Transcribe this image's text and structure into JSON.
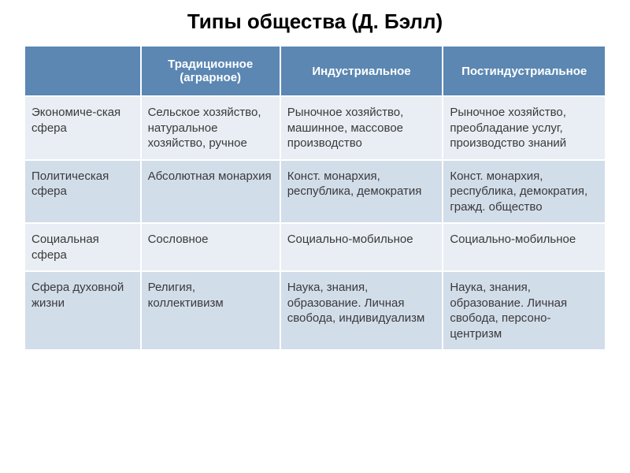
{
  "title": "Типы общества (Д. Бэлл)",
  "table": {
    "type": "table",
    "header_bg": "#5b87b2",
    "header_fg": "#ffffff",
    "row_colors": [
      "#e8eef4",
      "#d2ddea"
    ],
    "border_color": "#ffffff",
    "font_family": "Arial",
    "header_fontsize": 15,
    "cell_fontsize": 15,
    "columns": [
      "",
      "Традиционное (аграрное)",
      "Индустриальное",
      "Постиндустриальное"
    ],
    "col_widths_pct": [
      20,
      24,
      28,
      28
    ],
    "rows": [
      [
        "Экономиче-ская сфера",
        "Сельское хозяйство, натуральное хозяйство, ручное",
        "Рыночное хозяйство, машинное, массовое производство",
        "Рыночное хозяйство, преобладание услуг, производство знаний"
      ],
      [
        "Политическая сфера",
        "Абсолютная монархия",
        "Конст. монархия, республика, демократия",
        "Конст. монархия, республика, демократия, гражд. общество"
      ],
      [
        "Социальная сфера",
        "Сословное",
        "Социально-мобильное",
        "Социально-мобильное"
      ],
      [
        "Сфера духовной жизни",
        "Религия, коллективизм",
        "Наука, знания, образование. Личная свобода, индивидуализм",
        "Наука, знания, образование. Личная свобода, персоно-центризм"
      ]
    ]
  }
}
